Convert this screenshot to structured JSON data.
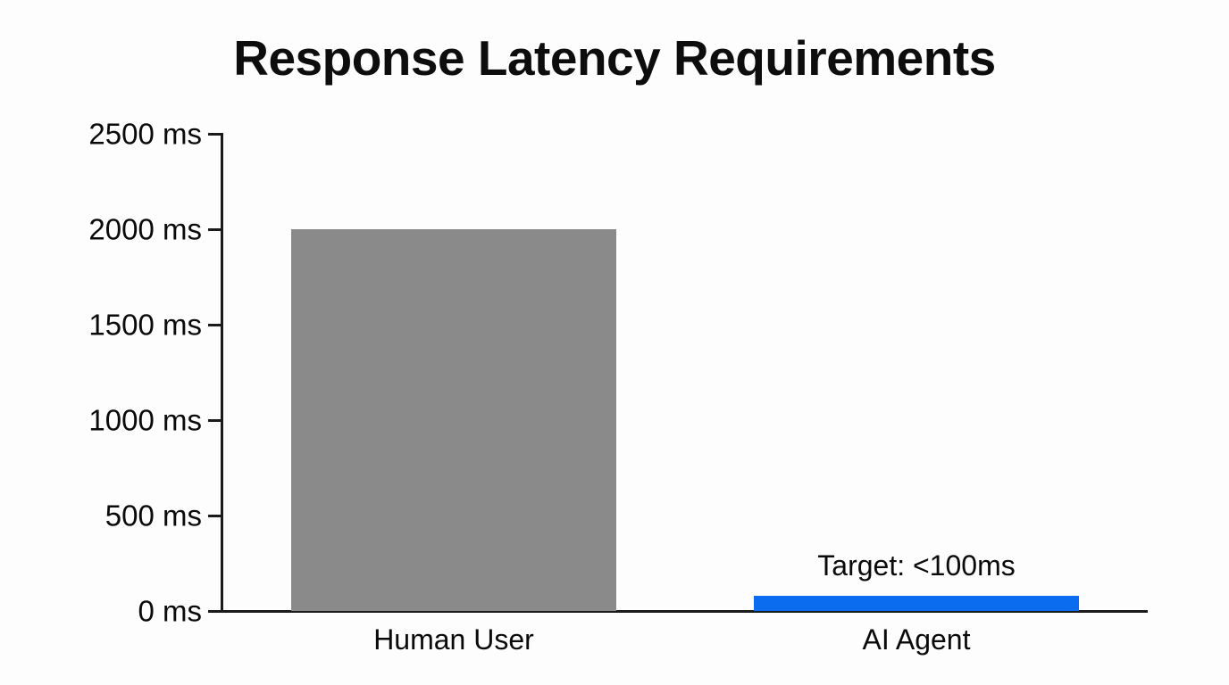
{
  "page": {
    "background": "#fdfdfd"
  },
  "chart_data": {
    "type": "bar",
    "title": "Response Latency Requirements",
    "categories": [
      "Human User",
      "AI Agent"
    ],
    "values": [
      2000,
      80
    ],
    "bar_colors": [
      "#8a8a8a",
      "#0b6cf0"
    ],
    "xlabel": "",
    "ylabel": "",
    "ylim": [
      0,
      2500
    ],
    "ytick_values": [
      0,
      500,
      1000,
      1500,
      2000,
      2500
    ],
    "ytick_suffix": " ms",
    "grid": false,
    "legend": null,
    "annotations": [
      {
        "target_category": "AI Agent",
        "text": "Target: <100ms"
      }
    ]
  },
  "colors": {
    "axis": "#1a1a1a",
    "text": "#0a0a0a"
  }
}
